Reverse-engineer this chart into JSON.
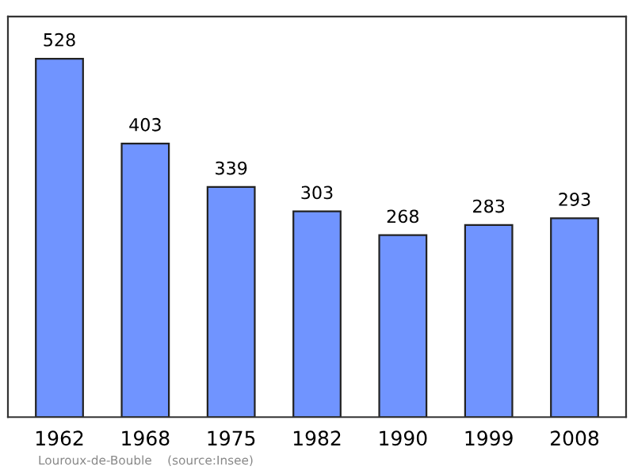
{
  "chart_data": {
    "type": "bar",
    "categories": [
      "1962",
      "1968",
      "1975",
      "1982",
      "1990",
      "1999",
      "2008"
    ],
    "values": [
      528,
      403,
      339,
      303,
      268,
      283,
      293
    ],
    "color": "#7094ff",
    "ylim": [
      0,
      590
    ],
    "tick_labels": "x",
    "data_labels": true,
    "grid": false,
    "annotations": [
      "Louroux-de-Bouble    (source:Insee)"
    ]
  }
}
